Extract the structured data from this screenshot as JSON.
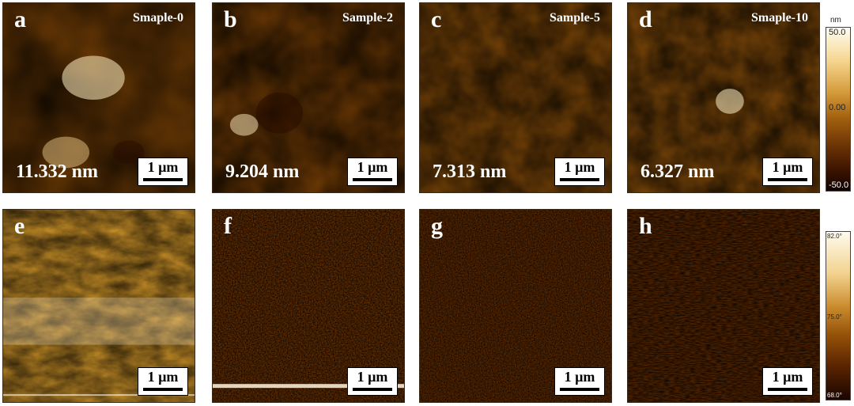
{
  "top_row": [
    {
      "letter": "a",
      "title": "Smaple-0",
      "roughness": "11.332 nm",
      "scale": "1 µm"
    },
    {
      "letter": "b",
      "title": "Sample-2",
      "roughness": "9.204 nm",
      "scale": "1 µm"
    },
    {
      "letter": "c",
      "title": "Sample-5",
      "roughness": "7.313 nm",
      "scale": "1 µm"
    },
    {
      "letter": "d",
      "title": "Smaple-10",
      "roughness": "6.327 nm",
      "scale": "1 µm"
    }
  ],
  "bottom_row": [
    {
      "letter": "e",
      "scale": "1 µm"
    },
    {
      "letter": "f",
      "scale": "1 µm"
    },
    {
      "letter": "g",
      "scale": "1 µm"
    },
    {
      "letter": "h",
      "scale": "1 µm"
    }
  ],
  "height_colorbar": {
    "unit": "nm",
    "max": "50.0",
    "mid": "0.00",
    "min": "-50.0"
  },
  "phase_colorbar": {
    "max": "82.0°",
    "mid": "75.0°",
    "min": "68.0°"
  },
  "colors": {
    "dark": "#2a0c00",
    "mid": "#a86a14",
    "light": "#fff2cc"
  }
}
